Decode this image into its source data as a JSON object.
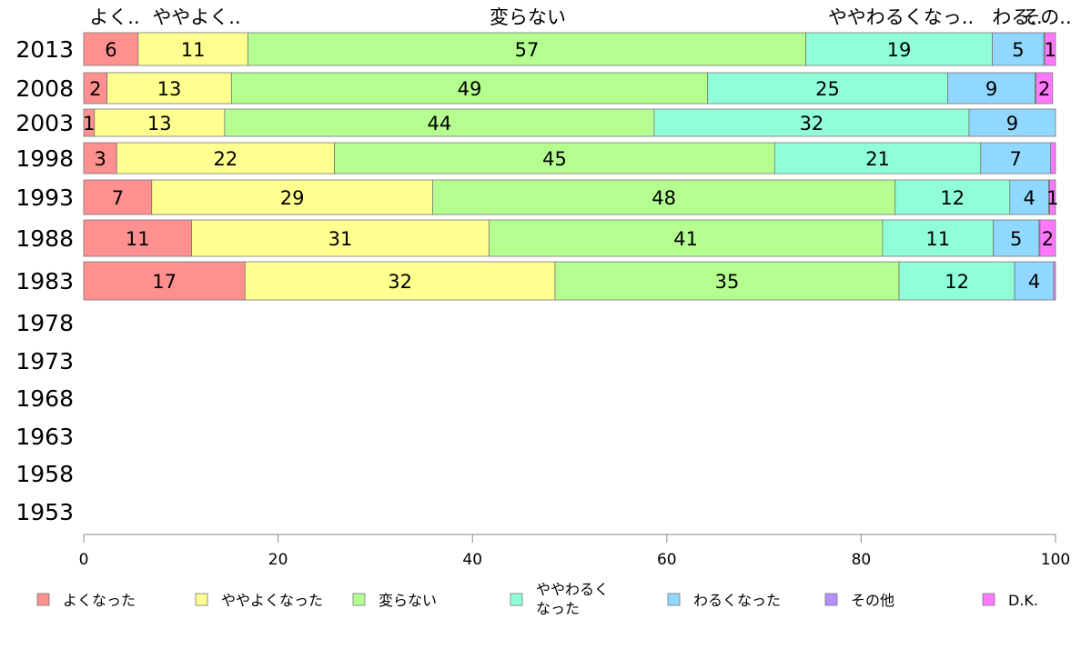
{
  "chart_data": {
    "type": "bar",
    "orientation": "horizontal",
    "stacked": true,
    "categories": [
      "2013",
      "2008",
      "2003",
      "1998",
      "1993",
      "1988",
      "1983",
      "1978",
      "1973",
      "1968",
      "1963",
      "1958",
      "1953"
    ],
    "header_labels": [
      "よく..",
      "ややよく..",
      "変らない",
      "ややわるくなっ..",
      "わる..",
      "その.."
    ],
    "series": [
      {
        "name": "よくなった",
        "values": [
          5.6,
          2.4,
          1.1,
          3.4,
          7.0,
          11.1,
          16.6,
          null,
          null,
          null,
          null,
          null,
          null
        ],
        "labels": [
          "6",
          "2",
          "1",
          "3",
          "7",
          "11",
          "17",
          "",
          "",
          "",
          "",
          "",
          ""
        ]
      },
      {
        "name": "ややよくなった",
        "values": [
          11.3,
          12.8,
          13.4,
          22.4,
          28.9,
          30.6,
          31.9,
          null,
          null,
          null,
          null,
          null,
          null
        ],
        "labels": [
          "11",
          "13",
          "13",
          "22",
          "29",
          "31",
          "32",
          "",
          "",
          "",
          "",
          "",
          ""
        ]
      },
      {
        "name": "変らない",
        "values": [
          57.4,
          49.0,
          44.2,
          45.3,
          47.6,
          40.5,
          35.4,
          null,
          null,
          null,
          null,
          null,
          null
        ],
        "labels": [
          "57",
          "49",
          "44",
          "45",
          "48",
          "41",
          "35",
          "",
          "",
          "",
          "",
          "",
          ""
        ]
      },
      {
        "name": "ややわるくなった",
        "values": [
          19.2,
          24.7,
          32.4,
          21.2,
          11.8,
          11.4,
          11.9,
          null,
          null,
          null,
          null,
          null,
          null
        ],
        "labels": [
          "19",
          "25",
          "32",
          "21",
          "12",
          "11",
          "12",
          "",
          "",
          "",
          "",
          "",
          ""
        ]
      },
      {
        "name": "わるくなった",
        "values": [
          5.3,
          9.0,
          8.9,
          7.2,
          4.0,
          4.7,
          4.0,
          null,
          null,
          null,
          null,
          null,
          null
        ],
        "labels": [
          "5",
          "9",
          "9",
          "7",
          "4",
          "5",
          "4",
          "",
          "",
          "",
          "",
          "",
          ""
        ]
      },
      {
        "name": "その他",
        "values": [
          0.1,
          0.1,
          0.0,
          0.0,
          0.1,
          0.1,
          0.0,
          null,
          null,
          null,
          null,
          null,
          null
        ],
        "labels": [
          "",
          "",
          "",
          "",
          "",
          "",
          "",
          "",
          "",
          "",
          "",
          "",
          ""
        ]
      },
      {
        "name": "D.K.",
        "values": [
          1.1,
          1.7,
          0.0,
          0.5,
          0.6,
          1.6,
          0.2,
          null,
          null,
          null,
          null,
          null,
          null
        ],
        "labels": [
          "1",
          "2",
          "",
          "",
          "1",
          "2",
          "",
          "",
          "",
          "",
          "",
          "",
          ""
        ]
      }
    ],
    "x_ticks": [
      0,
      20,
      40,
      60,
      80,
      100
    ],
    "xlim": [
      0,
      100
    ],
    "legend_position": "bottom",
    "colors": [
      "#ff9090",
      "#ffff90",
      "#b4ff90",
      "#90ffd8",
      "#90d8ff",
      "#b490ff",
      "#ff78ff"
    ]
  }
}
